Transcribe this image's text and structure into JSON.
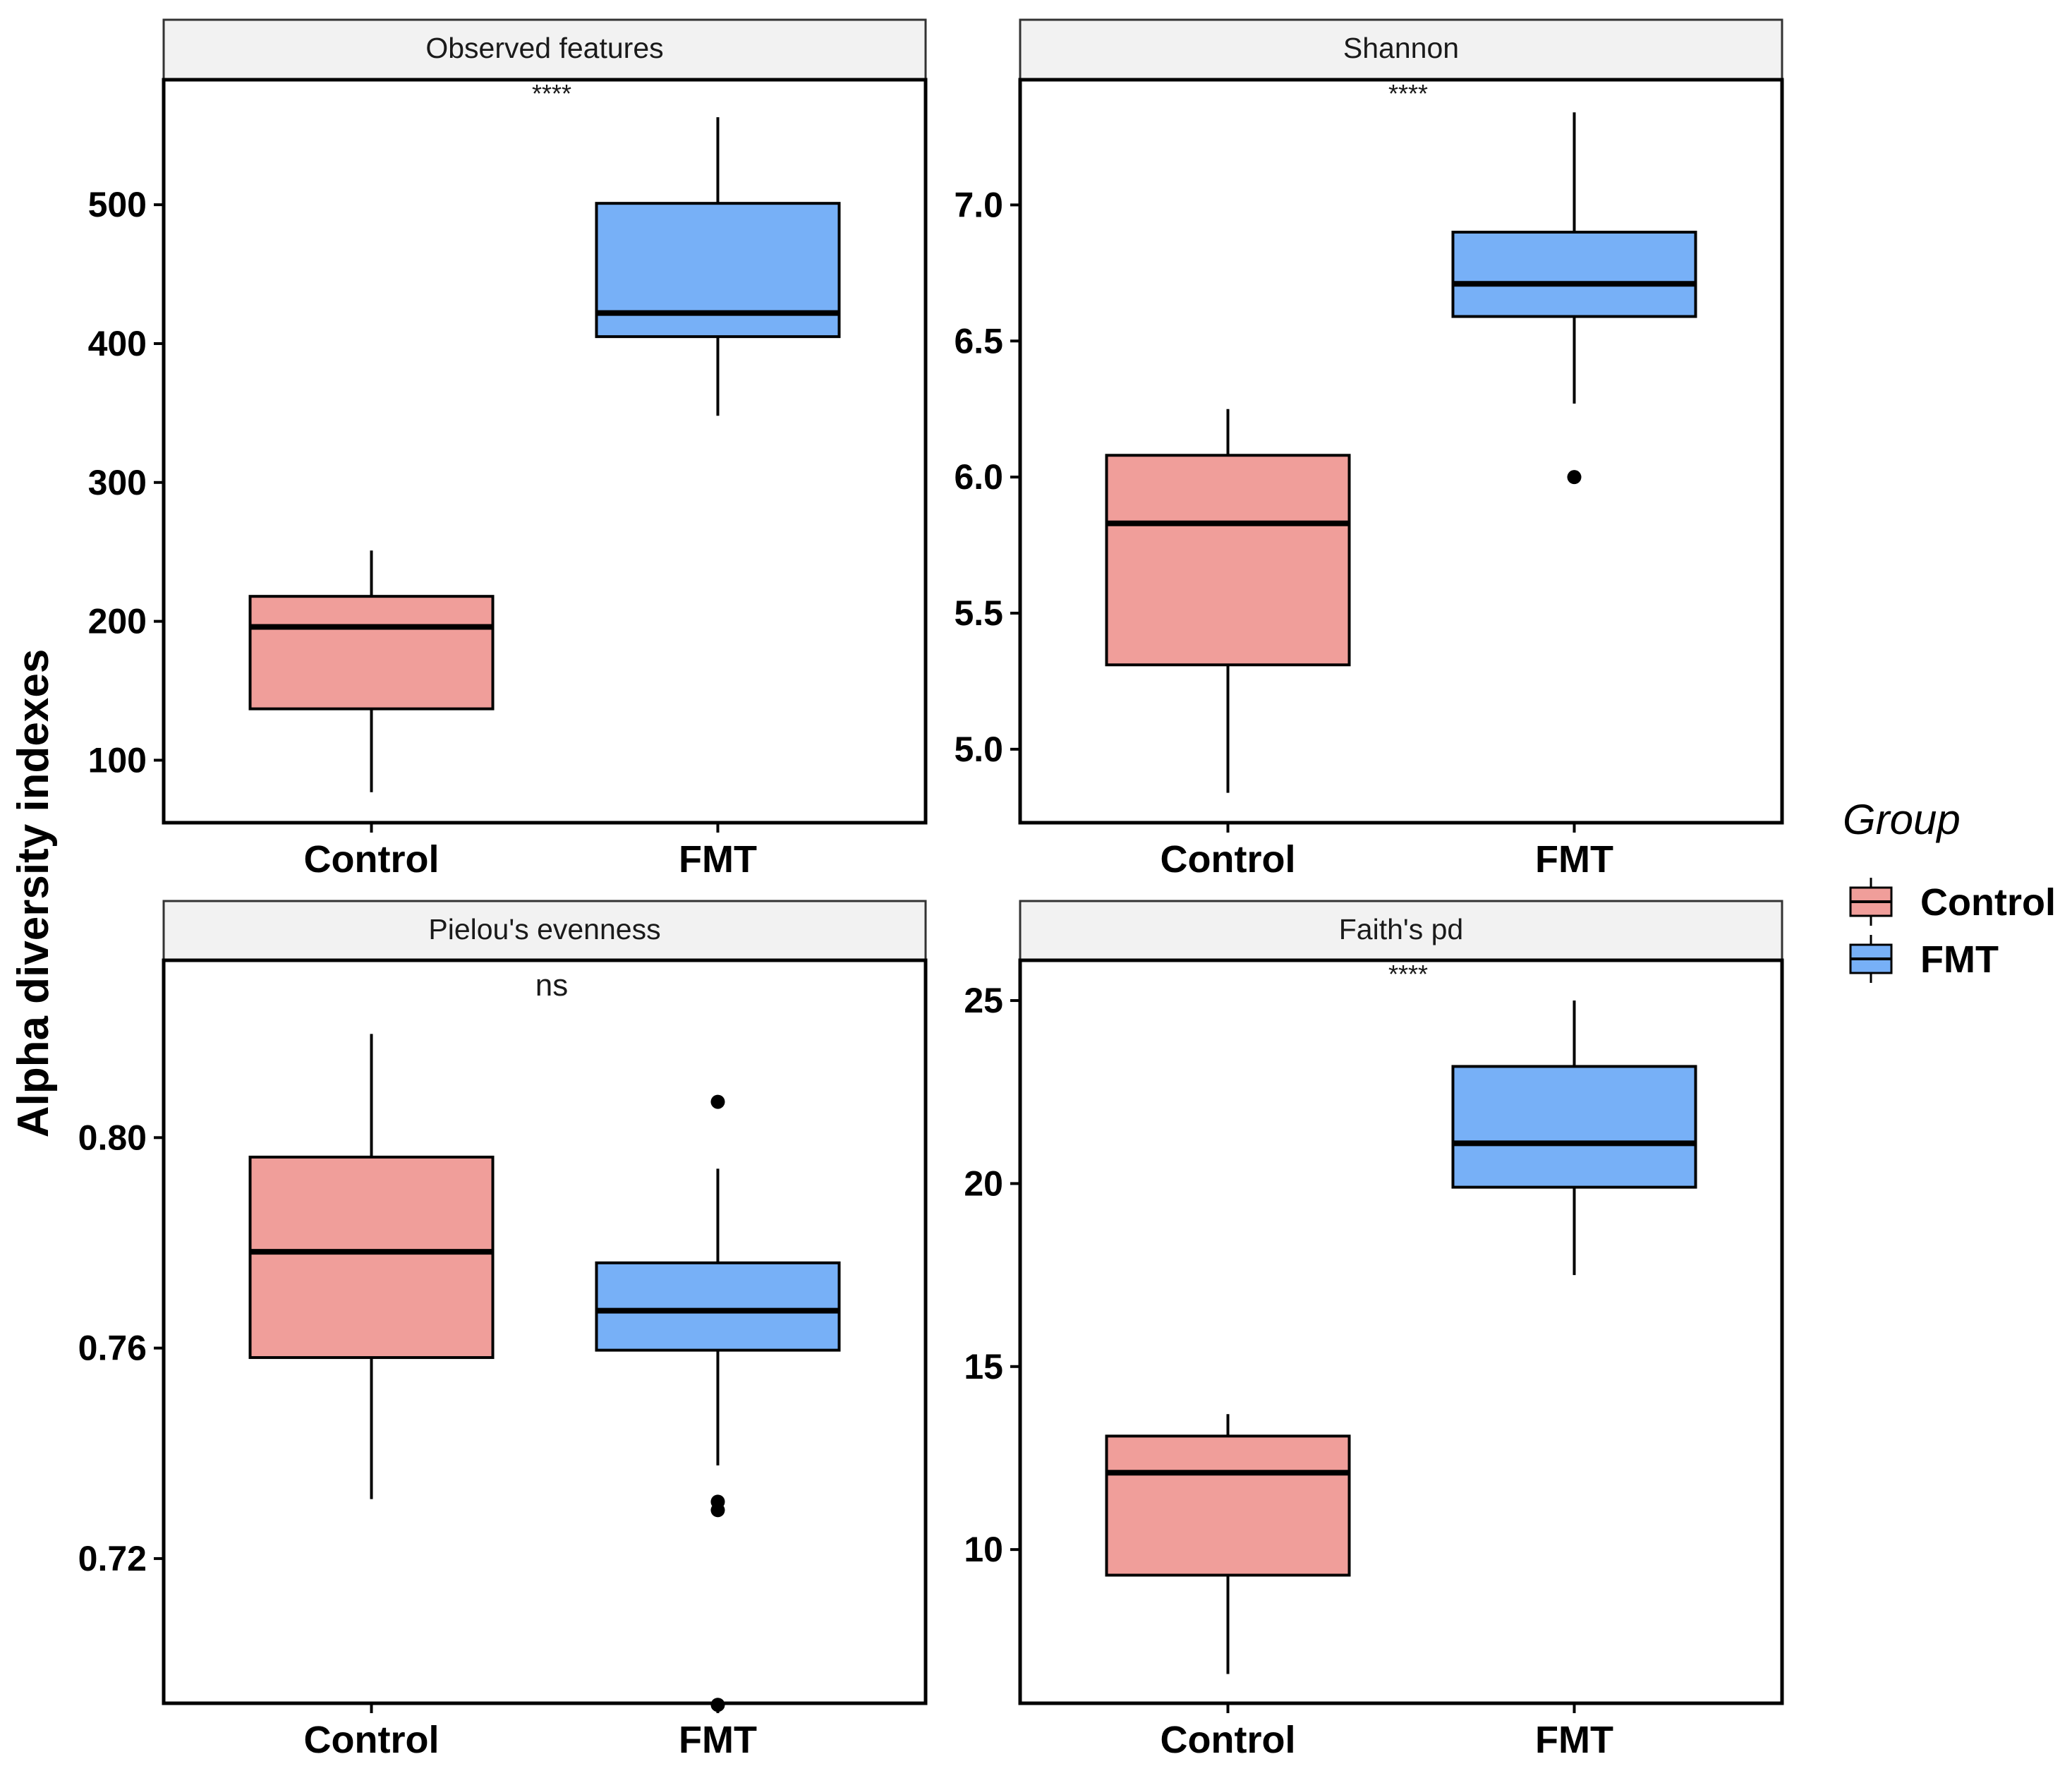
{
  "chart_data": {
    "type": "boxplot",
    "ylabel": "Alpha diversity indexes",
    "categories": [
      "Control",
      "FMT"
    ],
    "colors": {
      "Control": "#F09E9A",
      "FMT": "#77B0F7"
    },
    "legend": {
      "title": "Group",
      "position": "right",
      "items": [
        {
          "label": "Control",
          "color": "#F09E9A"
        },
        {
          "label": "FMT",
          "color": "#77B0F7"
        }
      ]
    },
    "panels": [
      {
        "title": "Observed features",
        "significance": "****",
        "ylim": [
          55,
          590
        ],
        "yticks": [
          100,
          200,
          300,
          400,
          500
        ],
        "tick_labels": [
          "100",
          "200",
          "300",
          "400",
          "500"
        ],
        "boxes": [
          {
            "group": "Control",
            "min": 77,
            "q1": 137,
            "median": 196,
            "q3": 218,
            "max": 251,
            "outliers": []
          },
          {
            "group": "FMT",
            "min": 348,
            "q1": 405,
            "median": 422,
            "q3": 501,
            "max": 563,
            "outliers": []
          }
        ]
      },
      {
        "title": "Shannon",
        "significance": "****",
        "ylim": [
          4.73,
          7.46
        ],
        "yticks": [
          5.0,
          5.5,
          6.0,
          6.5,
          7.0
        ],
        "tick_labels": [
          "5.0",
          "5.5",
          "6.0",
          "6.5",
          "7.0"
        ],
        "boxes": [
          {
            "group": "Control",
            "min": 4.84,
            "q1": 5.31,
            "median": 5.83,
            "q3": 6.08,
            "max": 6.25,
            "outliers": []
          },
          {
            "group": "FMT",
            "min": 6.27,
            "q1": 6.59,
            "median": 6.71,
            "q3": 6.9,
            "max": 7.34,
            "outliers": [
              6.0
            ]
          }
        ]
      },
      {
        "title": "Pielou's evenness",
        "significance": "ns",
        "ylim": [
          0.6925,
          0.8337
        ],
        "yticks": [
          0.72,
          0.76,
          0.8
        ],
        "tick_labels": [
          "0.72",
          "0.76",
          "0.80"
        ],
        "boxes": [
          {
            "group": "Control",
            "min": 0.7313,
            "q1": 0.7582,
            "median": 0.7783,
            "q3": 0.7963,
            "max": 0.8197,
            "outliers": []
          },
          {
            "group": "FMT",
            "min": 0.7377,
            "q1": 0.7596,
            "median": 0.7671,
            "q3": 0.7762,
            "max": 0.7941,
            "outliers": [
              0.8068,
              0.7308,
              0.7292,
              0.6922
            ]
          }
        ]
      },
      {
        "title": "Faith's pd",
        "significance": "****",
        "ylim": [
          5.8,
          26.1
        ],
        "yticks": [
          10,
          15,
          20,
          25
        ],
        "tick_labels": [
          "10",
          "15",
          "20",
          "25"
        ],
        "boxes": [
          {
            "group": "Control",
            "min": 6.6,
            "q1": 9.3,
            "median": 12.1,
            "q3": 13.1,
            "max": 13.7,
            "outliers": []
          },
          {
            "group": "FMT",
            "min": 17.5,
            "q1": 19.9,
            "median": 21.1,
            "q3": 23.2,
            "max": 25.0,
            "outliers": []
          }
        ]
      }
    ]
  }
}
